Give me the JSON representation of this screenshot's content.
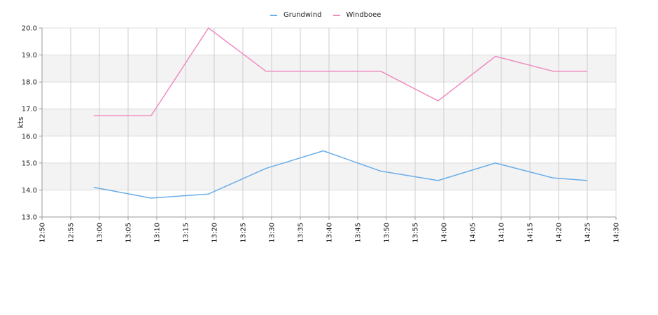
{
  "chart_data": {
    "type": "line",
    "xlabel": "",
    "ylabel": "kts",
    "xlim": [
      "12:50",
      "14:30"
    ],
    "ylim": [
      13.0,
      20.0
    ],
    "x_ticks": [
      "12:50",
      "12:55",
      "13:00",
      "13:05",
      "13:10",
      "13:15",
      "13:20",
      "13:25",
      "13:30",
      "13:35",
      "13:40",
      "13:45",
      "13:50",
      "13:55",
      "14:00",
      "14:05",
      "14:10",
      "14:15",
      "14:20",
      "14:25",
      "14:30"
    ],
    "y_ticks": [
      "13.0",
      "14.0",
      "15.0",
      "16.0",
      "17.0",
      "18.0",
      "19.0",
      "20.0"
    ],
    "grid": true,
    "alternating_bands": true,
    "legend_position": "top-center",
    "x": [
      "12:59",
      "13:09",
      "13:19",
      "13:29",
      "13:39",
      "13:49",
      "13:59",
      "14:09",
      "14:19",
      "14:25"
    ],
    "series": [
      {
        "name": "Grundwind",
        "color": "#6aaee8",
        "values": [
          14.1,
          13.7,
          13.85,
          14.8,
          15.45,
          14.7,
          14.35,
          15.0,
          14.45,
          14.35
        ]
      },
      {
        "name": "Windboee",
        "color": "#ef8cc1",
        "values": [
          16.75,
          16.75,
          20.0,
          18.4,
          18.4,
          18.4,
          17.3,
          18.95,
          18.4,
          18.4
        ]
      }
    ]
  }
}
